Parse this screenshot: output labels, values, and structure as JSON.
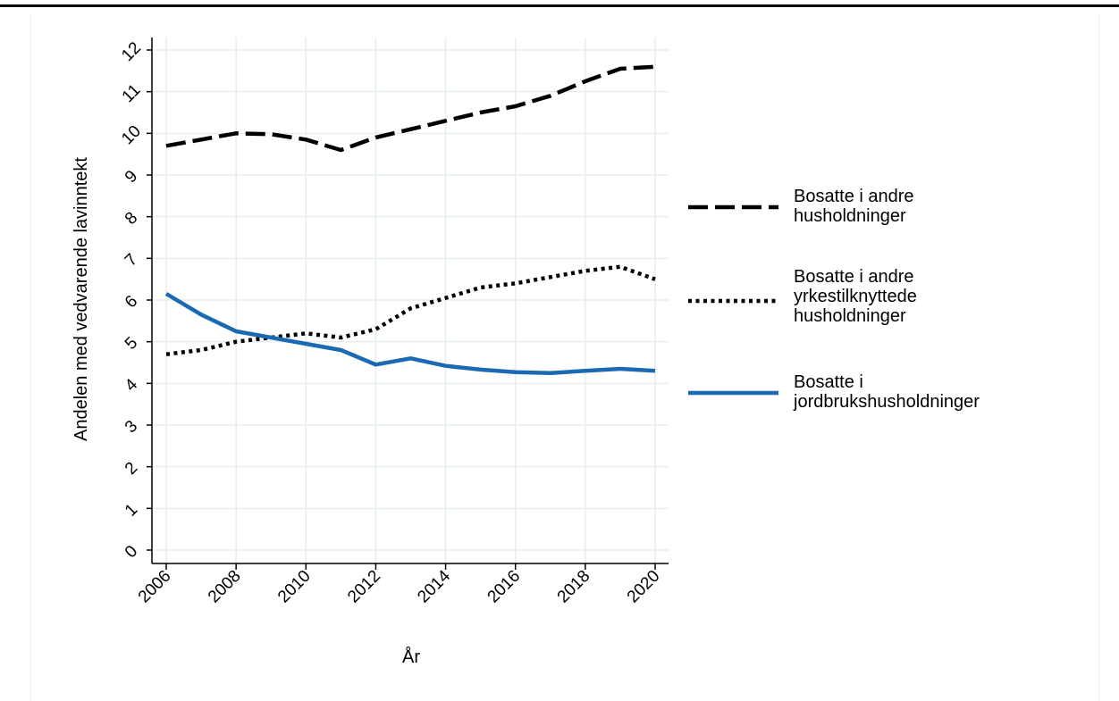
{
  "chart_data": {
    "type": "line",
    "title": "",
    "xlabel": "År",
    "ylabel": "Andelen med vedvarende lavinntekt",
    "xlim": [
      2006,
      2020
    ],
    "ylim": [
      0,
      12
    ],
    "x_ticks": [
      2006,
      2008,
      2010,
      2012,
      2014,
      2016,
      2018,
      2020
    ],
    "y_ticks": [
      0,
      1,
      2,
      3,
      4,
      5,
      6,
      7,
      8,
      9,
      10,
      11,
      12
    ],
    "grid": true,
    "legend_position": "right",
    "x": [
      2006,
      2007,
      2008,
      2009,
      2010,
      2011,
      2012,
      2013,
      2014,
      2015,
      2016,
      2017,
      2018,
      2019,
      2020
    ],
    "series": [
      {
        "name": "Bosatte i andre husholdninger",
        "legend_lines": [
          "Bosatte i andre",
          "husholdninger"
        ],
        "style": "dashed",
        "color": "#000000",
        "values": [
          9.7,
          9.85,
          10.0,
          9.98,
          9.85,
          9.6,
          9.9,
          10.1,
          10.3,
          10.5,
          10.65,
          10.9,
          11.25,
          11.55,
          11.6
        ]
      },
      {
        "name": "Bosatte i andre yrkestilknyttede husholdninger",
        "legend_lines": [
          "Bosatte i andre",
          "yrkestilknyttede",
          "husholdninger"
        ],
        "style": "dotted",
        "color": "#000000",
        "values": [
          4.7,
          4.8,
          5.0,
          5.1,
          5.2,
          5.1,
          5.3,
          5.8,
          6.05,
          6.3,
          6.4,
          6.55,
          6.7,
          6.8,
          6.5
        ]
      },
      {
        "name": "Bosatte i jordbrukshusholdninger",
        "legend_lines": [
          "Bosatte i",
          "jordbrukshusholdninger"
        ],
        "style": "solid",
        "color": "#1a69b2",
        "values": [
          6.15,
          5.65,
          5.25,
          5.1,
          4.95,
          4.8,
          4.45,
          4.6,
          4.42,
          4.33,
          4.27,
          4.25,
          4.3,
          4.35,
          4.3
        ]
      }
    ]
  }
}
